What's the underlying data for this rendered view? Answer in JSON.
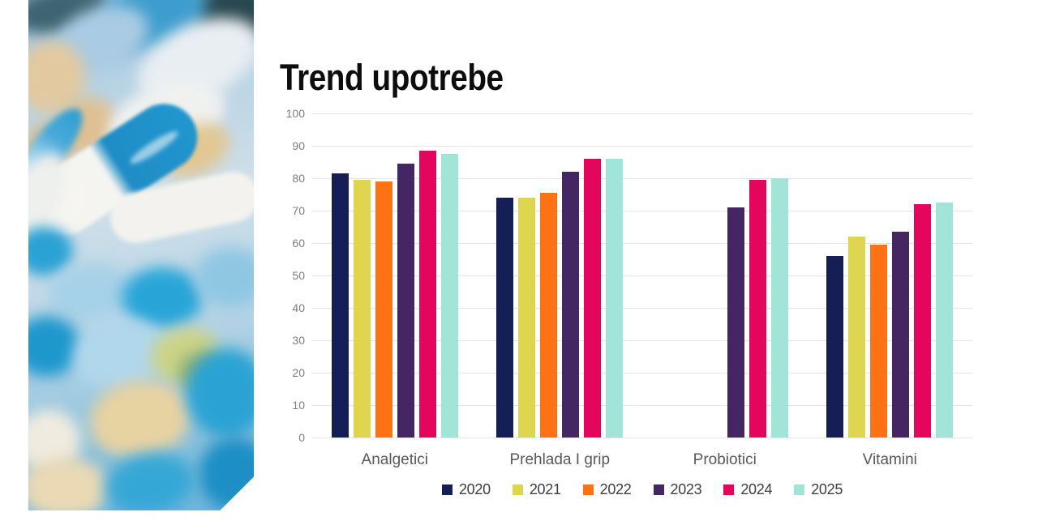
{
  "slide": {
    "title": "Trend upotrebe"
  },
  "photo": {
    "description": "blurred close-up photo of blue and white pills and capsules"
  },
  "chart_data": {
    "type": "bar",
    "title": "Trend upotrebe",
    "categories": [
      "Analgetici",
      "Prehlada I grip",
      "Probiotici",
      "Vitamini"
    ],
    "series": [
      {
        "name": "2020",
        "color": "#151e55",
        "values": [
          81.5,
          74,
          null,
          56
        ]
      },
      {
        "name": "2021",
        "color": "#ded64f",
        "values": [
          79.5,
          74,
          null,
          62
        ]
      },
      {
        "name": "2022",
        "color": "#fd7215",
        "values": [
          79,
          75.5,
          null,
          59.5
        ]
      },
      {
        "name": "2023",
        "color": "#442663",
        "values": [
          84.5,
          82,
          71,
          63.5
        ]
      },
      {
        "name": "2024",
        "color": "#e4055c",
        "values": [
          88.5,
          86,
          79.5,
          72
        ]
      },
      {
        "name": "2025",
        "color": "#a0e5d8",
        "values": [
          87.5,
          86,
          80,
          72.5
        ]
      }
    ],
    "ylim": [
      0,
      100
    ],
    "ytick_step": 10,
    "yticks": [
      "0",
      "10",
      "20",
      "30",
      "40",
      "50",
      "60",
      "70",
      "80",
      "90",
      "100"
    ],
    "grid": true,
    "legend_position": "bottom"
  }
}
